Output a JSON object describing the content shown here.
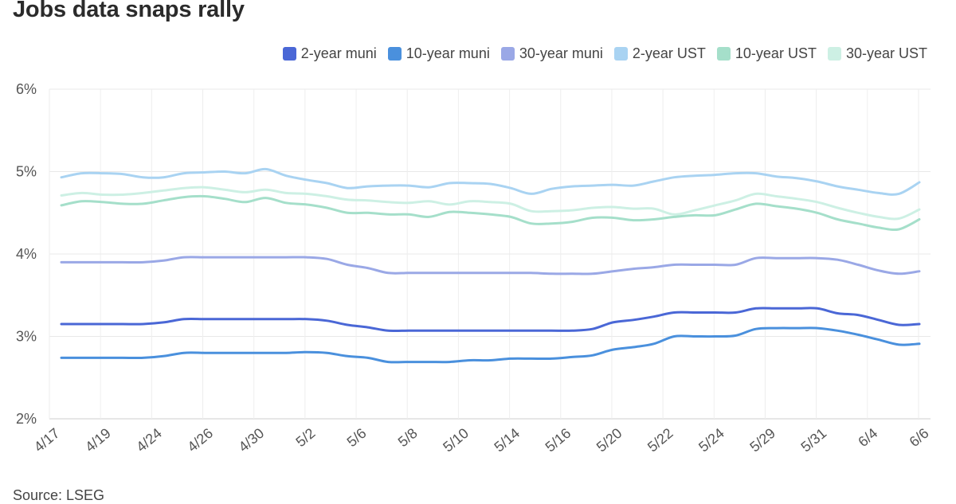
{
  "title": "Jobs data snaps rally",
  "source": "Source: LSEG",
  "chart_data": {
    "type": "line",
    "title": "Jobs data snaps rally",
    "xlabel": "",
    "ylabel": "",
    "ylim": [
      2,
      6
    ],
    "y_ticks": [
      "2%",
      "3%",
      "4%",
      "5%",
      "6%"
    ],
    "y_tick_values": [
      2,
      3,
      4,
      5,
      6
    ],
    "x_tick_labels": [
      "4/17",
      "4/19",
      "4/24",
      "4/26",
      "4/30",
      "5/2",
      "5/6",
      "5/8",
      "5/10",
      "5/14",
      "5/16",
      "5/20",
      "5/22",
      "5/24",
      "5/29",
      "5/31",
      "6/4",
      "6/6"
    ],
    "grid": true,
    "legend_position": "top-right",
    "series": [
      {
        "name": "2-year muni",
        "color": "#4a67d6",
        "values": [
          3.15,
          3.15,
          3.15,
          3.15,
          3.15,
          3.17,
          3.21,
          3.21,
          3.21,
          3.21,
          3.21,
          3.21,
          3.21,
          3.19,
          3.14,
          3.11,
          3.07,
          3.07,
          3.07,
          3.07,
          3.07,
          3.07,
          3.07,
          3.07,
          3.07,
          3.07,
          3.09,
          3.17,
          3.2,
          3.24,
          3.29,
          3.29,
          3.29,
          3.29,
          3.34,
          3.34,
          3.34,
          3.34,
          3.28,
          3.26,
          3.2,
          3.14,
          3.15
        ]
      },
      {
        "name": "10-year muni",
        "color": "#4a90dd",
        "values": [
          2.74,
          2.74,
          2.74,
          2.74,
          2.74,
          2.76,
          2.8,
          2.8,
          2.8,
          2.8,
          2.8,
          2.8,
          2.81,
          2.8,
          2.76,
          2.74,
          2.69,
          2.69,
          2.69,
          2.69,
          2.71,
          2.71,
          2.73,
          2.73,
          2.73,
          2.75,
          2.77,
          2.84,
          2.87,
          2.91,
          3.0,
          3.0,
          3.0,
          3.01,
          3.09,
          3.1,
          3.1,
          3.1,
          3.07,
          3.02,
          2.96,
          2.9,
          2.91
        ]
      },
      {
        "name": "30-year muni",
        "color": "#9aa8e6",
        "values": [
          3.9,
          3.9,
          3.9,
          3.9,
          3.9,
          3.92,
          3.96,
          3.96,
          3.96,
          3.96,
          3.96,
          3.96,
          3.96,
          3.94,
          3.87,
          3.83,
          3.77,
          3.77,
          3.77,
          3.77,
          3.77,
          3.77,
          3.77,
          3.77,
          3.76,
          3.76,
          3.76,
          3.79,
          3.82,
          3.84,
          3.87,
          3.87,
          3.87,
          3.87,
          3.95,
          3.95,
          3.95,
          3.95,
          3.93,
          3.87,
          3.8,
          3.76,
          3.79
        ]
      },
      {
        "name": "2-year UST",
        "color": "#a9d3f2",
        "values": [
          4.93,
          4.98,
          4.98,
          4.97,
          4.93,
          4.93,
          4.98,
          4.99,
          5.0,
          4.98,
          5.03,
          4.95,
          4.9,
          4.86,
          4.8,
          4.82,
          4.83,
          4.83,
          4.81,
          4.86,
          4.86,
          4.85,
          4.8,
          4.73,
          4.79,
          4.82,
          4.83,
          4.84,
          4.83,
          4.88,
          4.93,
          4.95,
          4.96,
          4.98,
          4.98,
          4.94,
          4.92,
          4.88,
          4.82,
          4.78,
          4.74,
          4.73,
          4.87
        ]
      },
      {
        "name": "10-year UST",
        "color": "#a5dfca",
        "values": [
          4.59,
          4.64,
          4.63,
          4.61,
          4.61,
          4.65,
          4.69,
          4.7,
          4.67,
          4.63,
          4.68,
          4.62,
          4.6,
          4.56,
          4.5,
          4.5,
          4.48,
          4.48,
          4.45,
          4.51,
          4.5,
          4.48,
          4.45,
          4.37,
          4.37,
          4.39,
          4.44,
          4.44,
          4.41,
          4.42,
          4.45,
          4.47,
          4.47,
          4.54,
          4.61,
          4.58,
          4.55,
          4.5,
          4.42,
          4.37,
          4.32,
          4.3,
          4.42
        ]
      },
      {
        "name": "30-year UST",
        "color": "#cdf0e4",
        "values": [
          4.71,
          4.74,
          4.72,
          4.72,
          4.74,
          4.77,
          4.8,
          4.81,
          4.78,
          4.75,
          4.78,
          4.74,
          4.73,
          4.7,
          4.66,
          4.65,
          4.63,
          4.62,
          4.64,
          4.6,
          4.64,
          4.63,
          4.61,
          4.52,
          4.52,
          4.53,
          4.56,
          4.57,
          4.55,
          4.55,
          4.48,
          4.53,
          4.59,
          4.65,
          4.73,
          4.7,
          4.67,
          4.63,
          4.56,
          4.5,
          4.45,
          4.43,
          4.54
        ]
      }
    ]
  }
}
